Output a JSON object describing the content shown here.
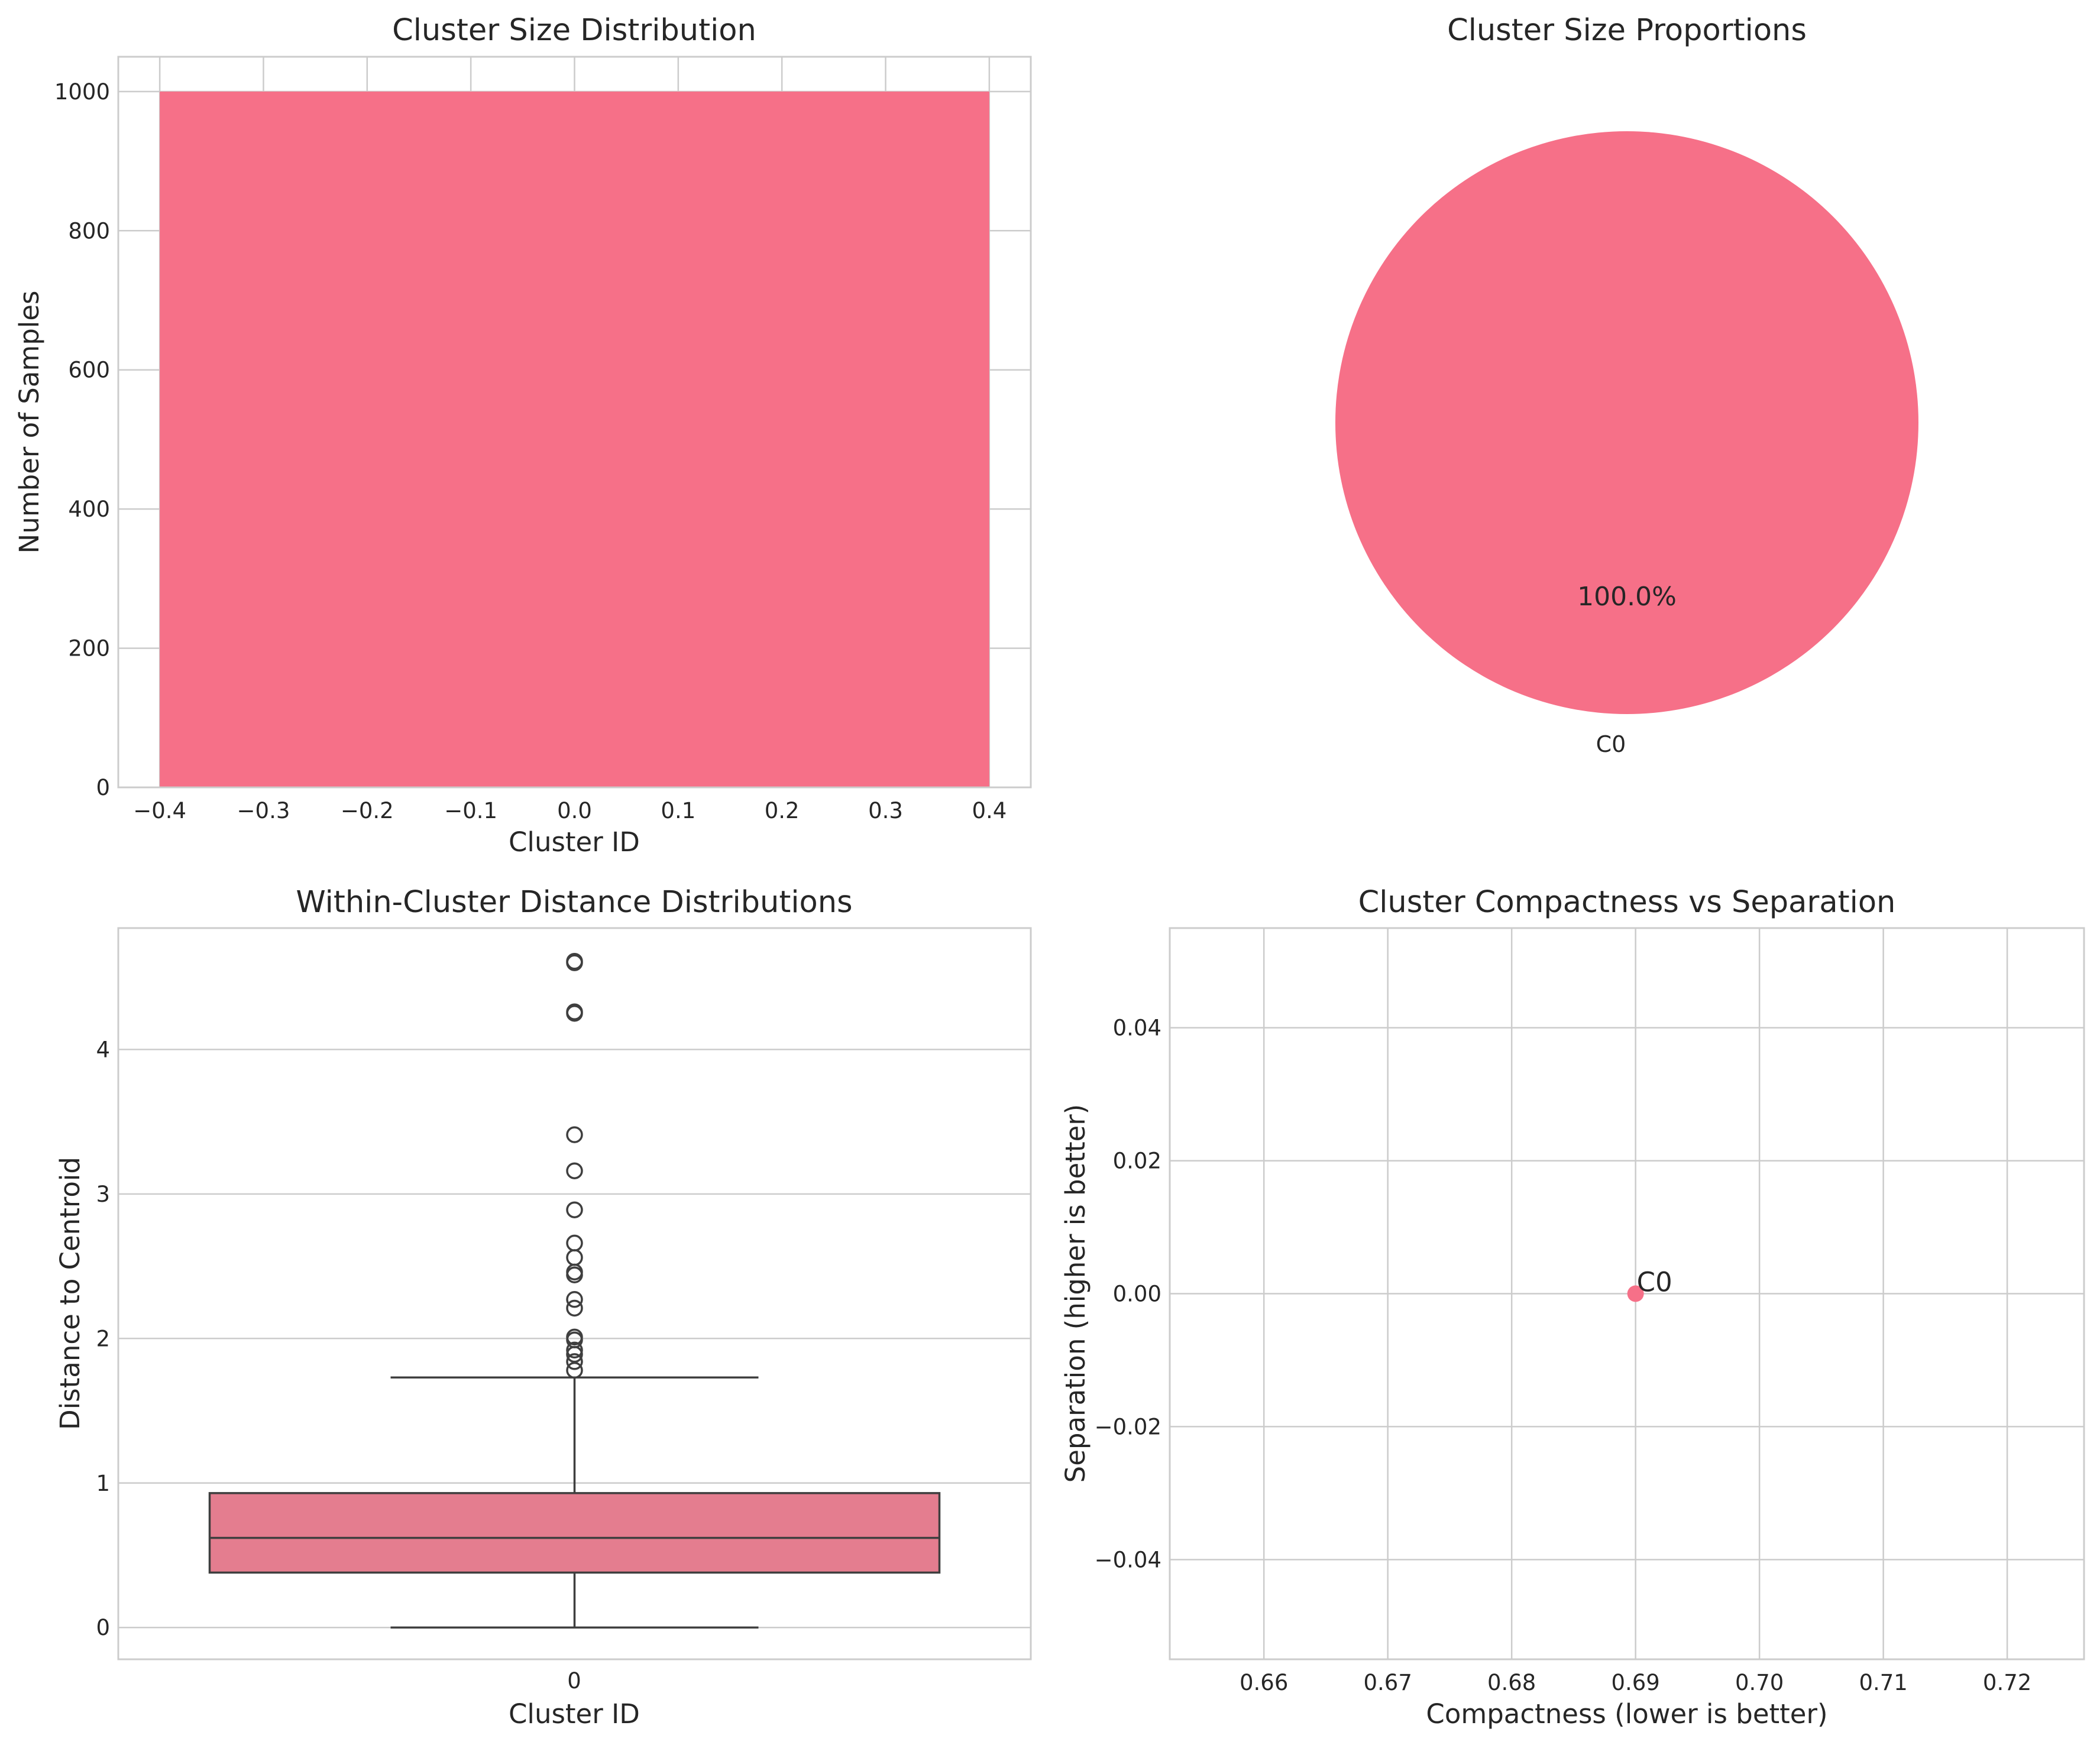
{
  "chart_data": [
    {
      "type": "bar",
      "title": "Cluster Size Distribution",
      "xlabel": "Cluster ID",
      "ylabel": "Number of Samples",
      "categories": [
        0
      ],
      "values": [
        1000
      ],
      "bar_width": 0.8,
      "xlim": [
        -0.44,
        0.44
      ],
      "ylim": [
        0,
        1050
      ],
      "xticks": [
        -0.4,
        -0.3,
        -0.2,
        -0.1,
        0.0,
        0.1,
        0.2,
        0.3,
        0.4
      ],
      "xtick_labels": [
        "−0.4",
        "−0.3",
        "−0.2",
        "−0.1",
        "0.0",
        "0.1",
        "0.2",
        "0.3",
        "0.4"
      ],
      "yticks": [
        0,
        200,
        400,
        600,
        800,
        1000
      ],
      "ytick_labels": [
        "0",
        "200",
        "400",
        "600",
        "800",
        "1000"
      ],
      "grid": true,
      "color": "#f67088"
    },
    {
      "type": "pie",
      "title": "Cluster Size Proportions",
      "labels": [
        "C0"
      ],
      "values": [
        100.0
      ],
      "autopct_labels": [
        "100.0%"
      ],
      "color": "#f67088"
    },
    {
      "type": "box",
      "title": "Within-Cluster Distance Distributions",
      "xlabel": "Cluster ID",
      "ylabel": "Distance to Centroid",
      "categories": [
        "0"
      ],
      "box": {
        "whislo": 0.0,
        "q1": 0.38,
        "median": 0.62,
        "q3": 0.93,
        "whishi": 1.73
      },
      "fliers": [
        1.78,
        1.84,
        1.89,
        1.92,
        1.99,
        2.01,
        2.21,
        2.27,
        2.44,
        2.46,
        2.56,
        2.66,
        2.89,
        3.16,
        3.41,
        4.25,
        4.26,
        4.6,
        4.61
      ],
      "ylim": [
        -0.22,
        4.84
      ],
      "yticks": [
        0,
        1,
        2,
        3,
        4
      ],
      "ytick_labels": [
        "0",
        "1",
        "2",
        "3",
        "4"
      ],
      "grid": true,
      "color": "#e47d8f"
    },
    {
      "type": "scatter",
      "title": "Cluster Compactness vs Separation",
      "xlabel": "Compactness (lower is better)",
      "ylabel": "Separation (higher is better)",
      "points": [
        {
          "x": 0.69,
          "y": 0.0,
          "label": "C0"
        }
      ],
      "xlim": [
        0.6524,
        0.7262
      ],
      "ylim": [
        -0.055,
        0.055
      ],
      "xticks": [
        0.66,
        0.67,
        0.68,
        0.69,
        0.7,
        0.71,
        0.72
      ],
      "xtick_labels": [
        "0.66",
        "0.67",
        "0.68",
        "0.69",
        "0.70",
        "0.71",
        "0.72"
      ],
      "yticks": [
        0.04,
        0.02,
        0.0,
        -0.02,
        -0.04
      ],
      "ytick_labels": [
        "0.04",
        "0.02",
        "0.00",
        "−0.02",
        "−0.04"
      ],
      "grid": true,
      "color": "#f67088"
    }
  ]
}
